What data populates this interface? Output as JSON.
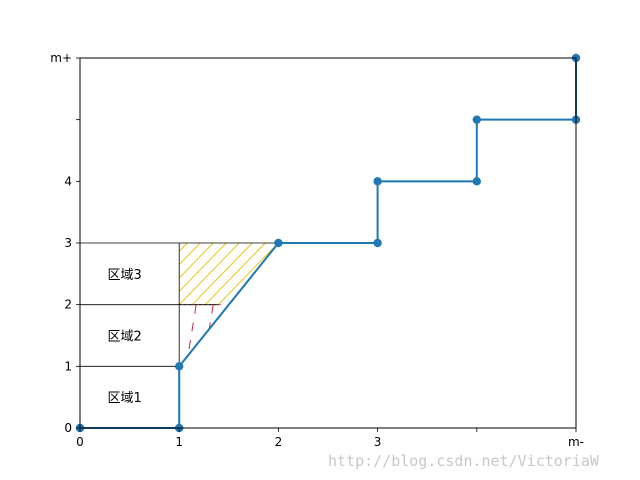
{
  "chart_data": {
    "type": "line",
    "title": "",
    "xlabel": "",
    "ylabel": "",
    "xlim": [
      0,
      5
    ],
    "ylim": [
      0,
      6
    ],
    "grid": false,
    "x_ticks": [
      {
        "value": 0,
        "label": "0"
      },
      {
        "value": 1,
        "label": "1"
      },
      {
        "value": 2,
        "label": "2"
      },
      {
        "value": 3,
        "label": "3"
      },
      {
        "value": 4,
        "label": ""
      },
      {
        "value": 5,
        "label": "m-"
      }
    ],
    "y_ticks": [
      {
        "value": 0,
        "label": "0"
      },
      {
        "value": 1,
        "label": "1"
      },
      {
        "value": 2,
        "label": "2"
      },
      {
        "value": 3,
        "label": "3"
      },
      {
        "value": 4,
        "label": "4"
      },
      {
        "value": 5,
        "label": ""
      },
      {
        "value": 6,
        "label": "m+"
      }
    ],
    "series": [
      {
        "color": "#1f77b4",
        "points": [
          [
            0,
            0
          ],
          [
            1,
            0
          ],
          [
            1,
            1
          ],
          [
            2,
            3
          ],
          [
            3,
            3
          ],
          [
            3,
            4
          ],
          [
            4,
            4
          ],
          [
            4,
            5
          ],
          [
            5,
            5
          ],
          [
            5,
            6
          ]
        ]
      }
    ],
    "regions": [
      {
        "label": "区域1",
        "y_range": [
          0,
          1
        ]
      },
      {
        "label": "区域2",
        "y_range": [
          1,
          2
        ]
      },
      {
        "label": "区域3",
        "y_range": [
          2,
          3
        ]
      }
    ],
    "region_x_range": [
      0,
      1
    ],
    "hatch": [
      {
        "color": "#e8c000",
        "y_range": [
          2,
          3
        ]
      },
      {
        "color": "#c0142d",
        "y_range": [
          1,
          2
        ]
      }
    ]
  },
  "watermark": "http://blog.csdn.net/VictoriaW"
}
